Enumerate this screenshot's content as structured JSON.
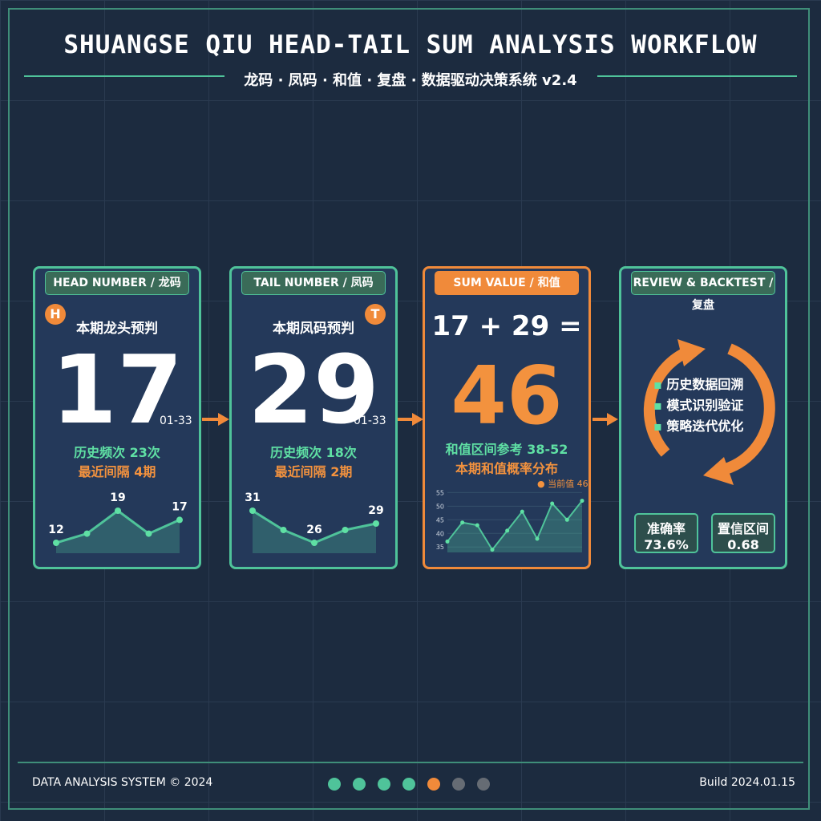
{
  "header": {
    "title": "SHUANGSE QIU HEAD-TAIL SUM ANALYSIS WORKFLOW",
    "subtitle": "龙码 · 凤码 · 和值 · 复盘 · 数据驱动决策系统 v2.4"
  },
  "cards": [
    {
      "label": "HEAD NUMBER / 龙码",
      "badge": "H",
      "caption": "本期龙头预判",
      "number": "17",
      "range": "01-33",
      "stats": [
        "历史频次 23次",
        "最近间隔 4期"
      ],
      "trend": {
        "values": [
          12,
          14,
          19,
          14,
          17
        ],
        "labeled": [
          0,
          2,
          4
        ]
      }
    },
    {
      "label": "TAIL NUMBER / 凤码",
      "badge": "T",
      "caption": "本期凤码预判",
      "number": "29",
      "range": "01-33",
      "stats": [
        "历史频次 18次",
        "最近间隔 2期"
      ],
      "trend": {
        "values": [
          31,
          28,
          26,
          28,
          29
        ],
        "labeled": [
          0,
          2,
          4
        ]
      }
    },
    {
      "label": "SUM VALUE / 和值",
      "equation": "17 + 29 =",
      "number": "46",
      "stats": [
        "和值区间参考 38-52",
        "本期和值概率分布"
      ],
      "legend": "当前值 46",
      "chart": {
        "values": [
          37,
          44,
          43,
          34,
          41,
          48,
          38,
          51,
          45,
          52
        ],
        "ylim": [
          33,
          56
        ],
        "yticks": [
          35,
          40,
          45,
          50,
          55
        ]
      }
    },
    {
      "label": "REVIEW & BACKTEST / 复盘",
      "items": [
        "历史数据回溯",
        "模式识别验证",
        "策略迭代优化"
      ],
      "metrics": [
        {
          "label": "准确率",
          "value": "73.6%"
        },
        {
          "label": "置信区间",
          "value": "0.68"
        }
      ]
    }
  ],
  "footer": {
    "left": "DATA ANALYSIS SYSTEM © 2024",
    "right": "Build 2024.01.15"
  }
}
